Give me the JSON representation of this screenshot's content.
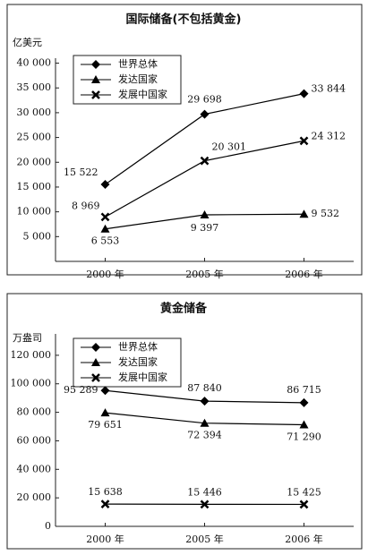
{
  "chart_data": [
    {
      "type": "line",
      "title": "国际储备(不包括黄金)",
      "ylabel": "亿美元",
      "categories": [
        "2000 年",
        "2005 年",
        "2006 年"
      ],
      "ylim": [
        0,
        41000
      ],
      "yticks": [
        {
          "value": 5000,
          "label": "5 000"
        },
        {
          "value": 10000,
          "label": "10 000"
        },
        {
          "value": 15000,
          "label": "15 000"
        },
        {
          "value": 20000,
          "label": "20 000"
        },
        {
          "value": 25000,
          "label": "25 000"
        },
        {
          "value": 30000,
          "label": "30 000"
        },
        {
          "value": 35000,
          "label": "35 000"
        },
        {
          "value": 40000,
          "label": "40 000"
        }
      ],
      "series": [
        {
          "name": "世界总体",
          "color": "#000000",
          "marker": "diamond",
          "values": [
            15522,
            29698,
            33844
          ],
          "value_labels": [
            "15 522",
            "29 698",
            "33 844"
          ]
        },
        {
          "name": "发达国家",
          "color": "#000000",
          "marker": "triangle",
          "values": [
            6553,
            9397,
            9532
          ],
          "value_labels": [
            "6 553",
            "9 397",
            "9 532"
          ]
        },
        {
          "name": "发展中国家",
          "color": "#000000",
          "marker": "x",
          "values": [
            8969,
            20301,
            24312
          ],
          "value_labels": [
            "8 969",
            "20 301",
            "24 312"
          ]
        }
      ]
    },
    {
      "type": "line",
      "title": "黄金储备",
      "ylabel": "万盎司",
      "categories": [
        "2000 年",
        "2005 年",
        "2006 年"
      ],
      "ylim": [
        0,
        135000
      ],
      "yticks": [
        0,
        {
          "value": 20000,
          "label": "20 000"
        },
        {
          "value": 40000,
          "label": "40 000"
        },
        {
          "value": 60000,
          "label": "60 000"
        },
        {
          "value": 80000,
          "label": "80 000"
        },
        {
          "value": 100000,
          "label": "100 000"
        },
        {
          "value": 120000,
          "label": "120 000"
        }
      ],
      "series": [
        {
          "name": "世界总体",
          "color": "#000000",
          "marker": "diamond",
          "values": [
            95289,
            87840,
            86715
          ],
          "value_labels": [
            "95 289",
            "87 840",
            "86 715"
          ]
        },
        {
          "name": "发达国家",
          "color": "#000000",
          "marker": "triangle",
          "values": [
            79651,
            72394,
            71290
          ],
          "value_labels": [
            "79 651",
            "72 394",
            "71 290"
          ]
        },
        {
          "name": "发展中国家",
          "color": "#000000",
          "marker": "x",
          "values": [
            15638,
            15446,
            15425
          ],
          "value_labels": [
            "15 638",
            "15 446",
            "15 425"
          ]
        }
      ]
    }
  ]
}
